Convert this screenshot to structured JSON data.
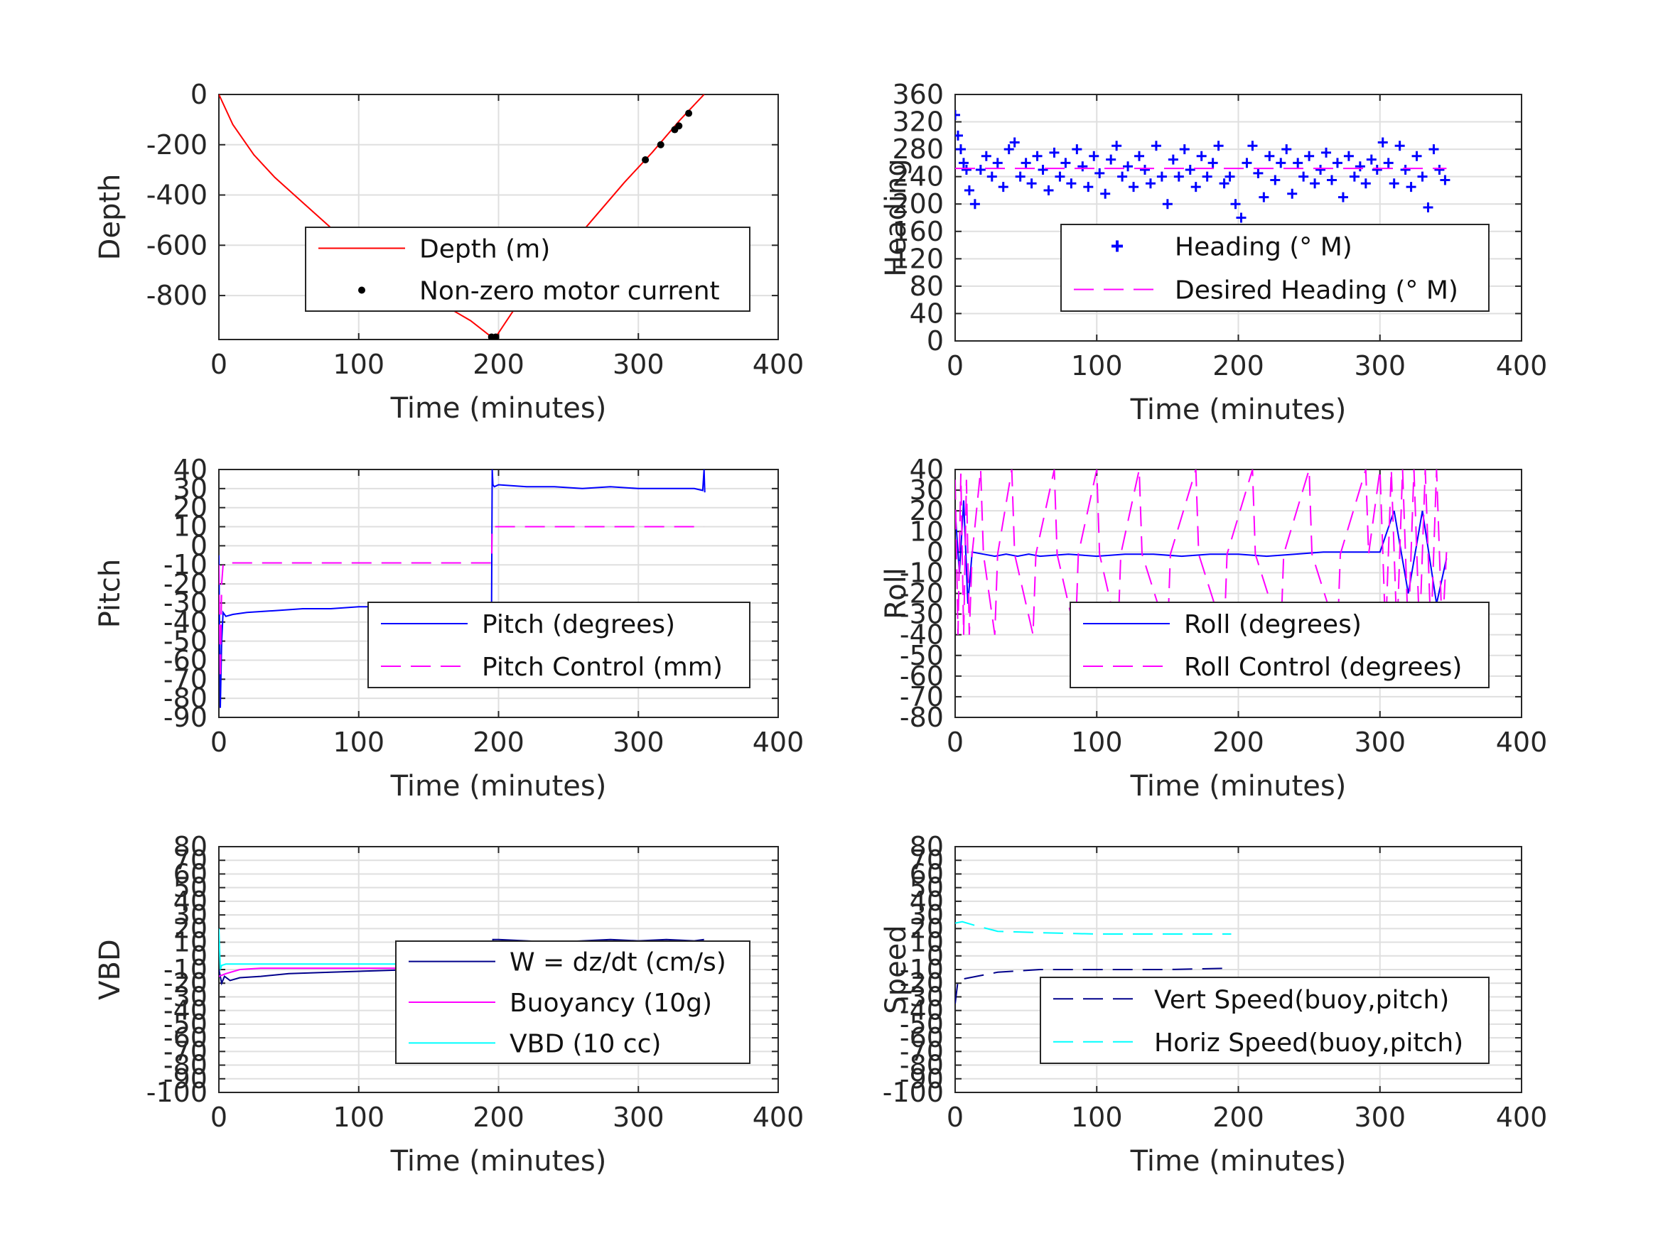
{
  "figure": {
    "background": "#ffffff"
  },
  "chart_data": [
    {
      "id": "depth",
      "type": "line",
      "xlabel": "Time (minutes)",
      "ylabel": "Depth",
      "xlim": [
        0,
        400
      ],
      "ylim": [
        -975,
        0
      ],
      "xticks": [
        0,
        100,
        200,
        300,
        400
      ],
      "yticks": [
        0,
        -200,
        -400,
        -600,
        -800
      ],
      "grid": true,
      "legend": {
        "placement": "center-right"
      },
      "series": [
        {
          "name": "Depth (m)",
          "color": "#ff0000",
          "style": "solid",
          "x": [
            0,
            10,
            25,
            40,
            60,
            80,
            100,
            120,
            140,
            160,
            180,
            195,
            198,
            210,
            230,
            250,
            270,
            290,
            310,
            330,
            347
          ],
          "y": [
            0,
            -120,
            -240,
            -330,
            -430,
            -530,
            -620,
            -700,
            -770,
            -835,
            -900,
            -965,
            -965,
            -865,
            -740,
            -610,
            -480,
            -350,
            -230,
            -100,
            0
          ]
        },
        {
          "name": "Non-zero motor current",
          "color": "#000000",
          "style": "dots",
          "x": [
            195,
            198,
            234,
            305,
            316,
            326,
            329,
            336
          ],
          "y": [
            -965,
            -965,
            -725,
            -260,
            -200,
            -140,
            -125,
            -75
          ]
        }
      ]
    },
    {
      "id": "heading",
      "type": "scatter",
      "xlabel": "Time (minutes)",
      "ylabel": "Heading",
      "xlim": [
        0,
        400
      ],
      "ylim": [
        0,
        360
      ],
      "xticks": [
        0,
        100,
        200,
        300,
        400
      ],
      "yticks": [
        0,
        40,
        80,
        120,
        160,
        200,
        240,
        280,
        320,
        360
      ],
      "grid": true,
      "legend": {
        "placement": "center-right"
      },
      "series": [
        {
          "name": "Heading (° M)",
          "color": "#0000ff",
          "style": "plus",
          "x": [
            0,
            2,
            4,
            6,
            8,
            10,
            14,
            18,
            22,
            26,
            30,
            34,
            38,
            42,
            46,
            50,
            54,
            58,
            62,
            66,
            70,
            74,
            78,
            82,
            86,
            90,
            94,
            98,
            102,
            106,
            110,
            114,
            118,
            122,
            126,
            130,
            134,
            138,
            142,
            146,
            150,
            154,
            158,
            162,
            166,
            170,
            174,
            178,
            182,
            186,
            190,
            194,
            198,
            202,
            206,
            210,
            214,
            218,
            222,
            226,
            230,
            234,
            238,
            242,
            246,
            250,
            254,
            258,
            262,
            266,
            270,
            274,
            278,
            282,
            286,
            290,
            294,
            298,
            302,
            306,
            310,
            314,
            318,
            322,
            326,
            330,
            334,
            338,
            342,
            346
          ],
          "y": [
            330,
            300,
            280,
            260,
            250,
            220,
            200,
            250,
            270,
            240,
            260,
            225,
            280,
            290,
            240,
            260,
            230,
            270,
            250,
            220,
            275,
            240,
            260,
            230,
            280,
            255,
            225,
            270,
            245,
            215,
            265,
            285,
            240,
            255,
            225,
            270,
            250,
            230,
            285,
            240,
            200,
            265,
            240,
            280,
            250,
            225,
            270,
            240,
            260,
            285,
            230,
            240,
            200,
            180,
            260,
            285,
            245,
            210,
            270,
            235,
            260,
            280,
            215,
            260,
            240,
            270,
            230,
            250,
            275,
            235,
            260,
            210,
            270,
            240,
            255,
            230,
            265,
            250,
            290,
            260,
            230,
            285,
            250,
            225,
            270,
            240,
            195,
            280,
            250,
            235
          ]
        },
        {
          "name": "Desired Heading (° M)",
          "color": "#ff00ff",
          "style": "dashed",
          "x": [
            0,
            347
          ],
          "y": [
            252,
            252
          ]
        }
      ]
    },
    {
      "id": "pitch",
      "type": "line",
      "xlabel": "Time (minutes)",
      "ylabel": "Pitch",
      "xlim": [
        0,
        400
      ],
      "ylim": [
        -90,
        40
      ],
      "xticks": [
        0,
        100,
        200,
        300,
        400
      ],
      "yticks": [
        -90,
        -80,
        -70,
        -60,
        -50,
        -40,
        -30,
        -20,
        -10,
        0,
        10,
        20,
        30,
        40
      ],
      "grid": true,
      "legend": {
        "placement": "lower-right"
      },
      "series": [
        {
          "name": "Pitch (degrees)",
          "color": "#0000ff",
          "style": "solid",
          "x": [
            0,
            1,
            2,
            3,
            5,
            10,
            20,
            40,
            60,
            80,
            100,
            120,
            140,
            160,
            180,
            195,
            195.5,
            196,
            197,
            200,
            220,
            240,
            260,
            280,
            300,
            320,
            340,
            346,
            347,
            347.5
          ],
          "y": [
            -5,
            -85,
            -50,
            -35,
            -37,
            -36,
            -35,
            -34,
            -33,
            -33,
            -32,
            -32,
            -32,
            -31,
            -31,
            -31,
            40,
            32,
            31,
            32,
            31,
            31,
            30,
            31,
            30,
            30,
            30,
            29,
            40,
            28
          ]
        },
        {
          "name": "Pitch Control (mm)",
          "color": "#ff00ff",
          "style": "dashed",
          "x": [
            0,
            1,
            2,
            3,
            5,
            20,
            60,
            100,
            150,
            195,
            195.5,
            200,
            250,
            300,
            347
          ],
          "y": [
            -10,
            -70,
            -20,
            -10,
            -9,
            -9,
            -9,
            -9,
            -9,
            -9,
            10,
            10,
            10,
            10,
            10
          ]
        }
      ]
    },
    {
      "id": "roll",
      "type": "line",
      "xlabel": "Time (minutes)",
      "ylabel": "Roll",
      "xlim": [
        0,
        400
      ],
      "ylim": [
        -80,
        40
      ],
      "xticks": [
        0,
        100,
        200,
        300,
        400
      ],
      "yticks": [
        -80,
        -70,
        -60,
        -50,
        -40,
        -30,
        -20,
        -10,
        0,
        10,
        20,
        30,
        40
      ],
      "grid": true,
      "legend": {
        "placement": "lower-right"
      },
      "series": [
        {
          "name": "Roll (degrees)",
          "color": "#0000ff",
          "style": "solid",
          "x": [
            0,
            3,
            6,
            9,
            12,
            20,
            28,
            36,
            44,
            52,
            60,
            80,
            100,
            120,
            140,
            160,
            180,
            200,
            220,
            240,
            260,
            280,
            300,
            310,
            320,
            330,
            340,
            347
          ],
          "y": [
            20,
            -10,
            25,
            -25,
            0,
            -1,
            -2,
            -1,
            -2,
            -1,
            -2,
            -1,
            -2,
            -1,
            -1,
            -2,
            -1,
            -1,
            -2,
            -1,
            0,
            0,
            0,
            20,
            -20,
            20,
            -25,
            -3
          ]
        },
        {
          "name": "Roll Control (degrees)",
          "color": "#ff00ff",
          "style": "dashed",
          "x": [
            0,
            2,
            4,
            6,
            8,
            10,
            12,
            18,
            20,
            28,
            30,
            40,
            42,
            55,
            57,
            70,
            72,
            85,
            87,
            100,
            102,
            115,
            117,
            130,
            132,
            150,
            152,
            170,
            172,
            190,
            192,
            210,
            212,
            230,
            232,
            250,
            252,
            270,
            272,
            290,
            292,
            300,
            304,
            308,
            312,
            316,
            320,
            324,
            328,
            332,
            336,
            340,
            344,
            347
          ],
          "y": [
            35,
            -40,
            38,
            -40,
            35,
            -40,
            -1,
            40,
            -1,
            -40,
            -1,
            40,
            -1,
            -40,
            -1,
            40,
            -1,
            -40,
            -1,
            40,
            -1,
            -40,
            -1,
            40,
            -1,
            -40,
            -1,
            40,
            -1,
            -40,
            -1,
            40,
            -1,
            -40,
            -1,
            40,
            -1,
            -40,
            -1,
            40,
            -1,
            40,
            -40,
            40,
            -40,
            40,
            -40,
            40,
            -40,
            40,
            -40,
            40,
            -40,
            0
          ]
        }
      ]
    },
    {
      "id": "vbd",
      "type": "line",
      "xlabel": "Time (minutes)",
      "ylabel": "VBD",
      "xlim": [
        0,
        400
      ],
      "ylim": [
        -100,
        80
      ],
      "xticks": [
        0,
        100,
        200,
        300,
        400
      ],
      "yticks": [
        -100,
        -90,
        -80,
        -70,
        -60,
        -50,
        -40,
        -30,
        -20,
        -10,
        0,
        10,
        20,
        30,
        40,
        50,
        60,
        70,
        80
      ],
      "grid": true,
      "legend": {
        "placement": "lower-right"
      },
      "series": [
        {
          "name": "W = dz/dt (cm/s)",
          "color": "#00008b",
          "style": "solid",
          "x": [
            0,
            2,
            4,
            8,
            15,
            30,
            50,
            80,
            110,
            140,
            170,
            195,
            196,
            200,
            220,
            240,
            260,
            280,
            300,
            320,
            340,
            347
          ],
          "y": [
            -10,
            -20,
            -15,
            -18,
            -16,
            -15,
            -13,
            -12,
            -11,
            -10,
            -9,
            -9,
            12,
            12,
            11,
            10,
            11,
            12,
            11,
            12,
            11,
            12
          ]
        },
        {
          "name": "Buoyancy (10g)",
          "color": "#ff00ff",
          "style": "solid",
          "x": [
            0,
            5,
            15,
            30,
            60,
            100,
            140,
            195,
            196,
            220,
            260,
            300,
            347
          ],
          "y": [
            -15,
            -13,
            -10,
            -9,
            -9,
            -9,
            -9,
            -8,
            10,
            9,
            9,
            9,
            10
          ]
        },
        {
          "name": "VBD (10 cc)",
          "color": "#00ffff",
          "style": "solid",
          "x": [
            0,
            1,
            2,
            5,
            20,
            60,
            100,
            150,
            195,
            196,
            220,
            260,
            300,
            347
          ],
          "y": [
            20,
            -10,
            -7,
            -6,
            -6,
            -6,
            -6,
            -6,
            -6,
            5,
            5,
            5,
            5,
            8
          ]
        }
      ]
    },
    {
      "id": "speed",
      "type": "line",
      "xlabel": "Time (minutes)",
      "ylabel": "Speed",
      "xlim": [
        0,
        400
      ],
      "ylim": [
        -100,
        80
      ],
      "xticks": [
        0,
        100,
        200,
        300,
        400
      ],
      "yticks": [
        -100,
        -90,
        -80,
        -70,
        -60,
        -50,
        -40,
        -30,
        -20,
        -10,
        0,
        10,
        20,
        30,
        40,
        50,
        60,
        70,
        80
      ],
      "grid": true,
      "legend": {
        "placement": "lower-right"
      },
      "series": [
        {
          "name": "Vert Speed(buoy,pitch)",
          "color": "#00008b",
          "style": "dashed",
          "x": [
            0,
            2,
            5,
            15,
            30,
            60,
            100,
            150,
            195
          ],
          "y": [
            -35,
            -18,
            -17,
            -15,
            -12,
            -10,
            -10,
            -10,
            -9
          ]
        },
        {
          "name": "Horiz Speed(buoy,pitch)",
          "color": "#00ffff",
          "style": "dashed",
          "x": [
            0,
            5,
            15,
            30,
            60,
            100,
            150,
            195
          ],
          "y": [
            24,
            25,
            22,
            18,
            17,
            16,
            16,
            16
          ]
        }
      ]
    }
  ]
}
